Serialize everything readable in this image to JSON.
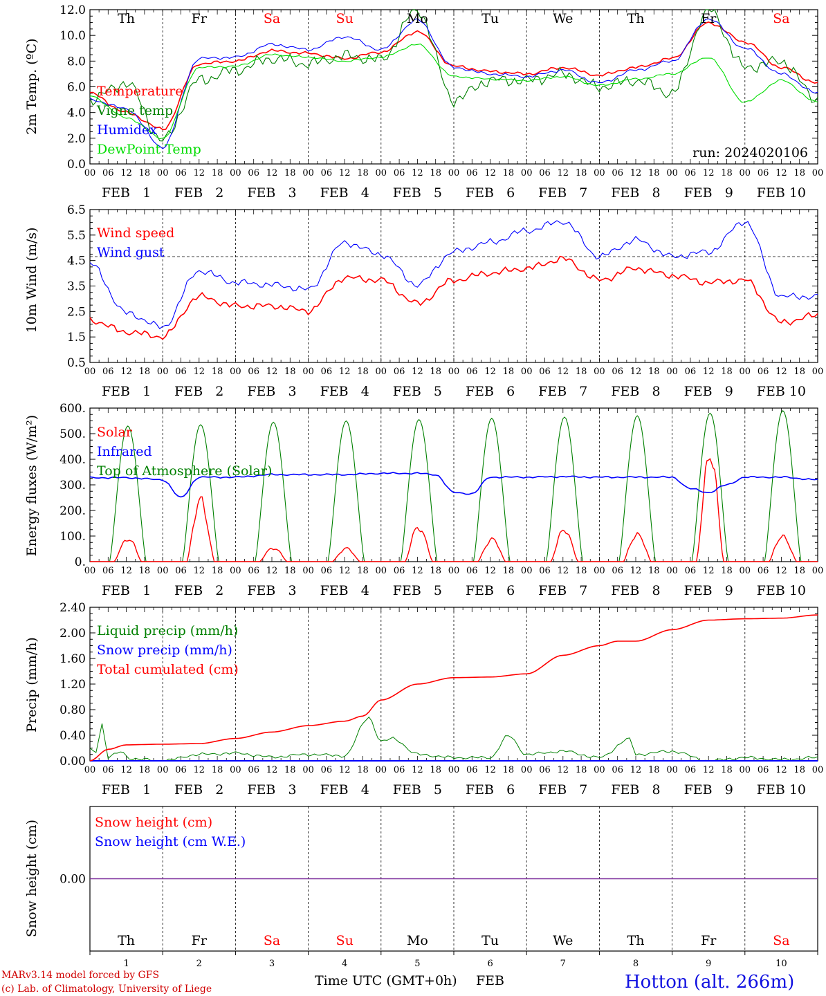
{
  "chart_data": [
    {
      "type": "line",
      "ylabel": "2m Temp. (ºC)",
      "ylim": [
        0,
        12
      ],
      "yticks": [
        "0.0",
        "2.0",
        "4.0",
        "6.0",
        "8.0",
        "10.0",
        "12.0"
      ],
      "run_label": "run: 2024020106",
      "hours": [
        0,
        12,
        24,
        36,
        48,
        60,
        72,
        84,
        96,
        108,
        120,
        132,
        144,
        156,
        168,
        180,
        192,
        204,
        216,
        228,
        240
      ],
      "series": [
        {
          "name": "Temperature",
          "color": "#ff0000",
          "values": [
            5.5,
            4.0,
            2.7,
            7.8,
            8.0,
            8.8,
            8.6,
            8.2,
            8.7,
            10.3,
            7.6,
            7.2,
            7.0,
            7.5,
            6.9,
            7.5,
            8.2,
            11.0,
            9.5,
            7.5,
            6.3
          ]
        },
        {
          "name": "Vigne temp",
          "color": "#008000",
          "values": [
            5.0,
            6.3,
            1.8,
            6.5,
            7.3,
            8.2,
            7.8,
            8.4,
            8.1,
            12.0,
            5.0,
            6.5,
            6.5,
            7.0,
            6.0,
            6.5,
            5.5,
            12.0,
            7.5,
            8.0,
            5.0
          ]
        },
        {
          "name": "Humidex",
          "color": "#0000ff",
          "values": [
            5.0,
            4.3,
            1.3,
            8.2,
            8.3,
            9.3,
            8.9,
            9.9,
            8.9,
            11.2,
            7.5,
            7.0,
            6.8,
            7.3,
            6.3,
            7.3,
            8.0,
            11.3,
            9.0,
            7.0,
            5.5
          ]
        },
        {
          "name": "DewPoint Temp",
          "color": "#00dd00",
          "values": [
            5.3,
            3.6,
            2.0,
            7.5,
            7.6,
            8.5,
            8.3,
            8.0,
            8.3,
            9.3,
            6.8,
            6.6,
            6.5,
            6.8,
            6.1,
            6.6,
            7.0,
            8.3,
            4.8,
            6.5,
            4.8
          ]
        }
      ]
    },
    {
      "type": "line",
      "ylabel": "10m Wind (m/s)",
      "ylim": [
        0.5,
        7.0
      ],
      "yticks": [
        "0.5",
        "1.5",
        "2.5",
        "3.5",
        "4.5",
        "5.5",
        "6.5"
      ],
      "reference_line": 5.0,
      "hours": [
        0,
        12,
        24,
        36,
        48,
        60,
        72,
        84,
        96,
        108,
        120,
        132,
        144,
        156,
        168,
        180,
        192,
        204,
        216,
        228,
        240
      ],
      "series": [
        {
          "name": "Wind speed",
          "color": "#ff0000",
          "values": [
            2.3,
            1.8,
            1.6,
            3.3,
            2.9,
            2.9,
            2.7,
            4.1,
            4.0,
            3.0,
            4.0,
            4.3,
            4.5,
            4.9,
            4.0,
            4.5,
            4.2,
            3.9,
            4.0,
            2.2,
            2.5
          ]
        },
        {
          "name": "Wind gust",
          "color": "#0000ff",
          "values": [
            4.7,
            2.6,
            2.0,
            4.4,
            3.9,
            3.8,
            3.6,
            5.6,
            5.1,
            3.8,
            5.2,
            5.6,
            6.1,
            6.5,
            5.0,
            5.7,
            5.0,
            5.2,
            6.5,
            3.3,
            3.3
          ]
        }
      ]
    },
    {
      "type": "line",
      "ylabel": "Energy fluxes (W/m²)",
      "ylim": [
        0,
        600
      ],
      "yticks": [
        "0.",
        "100.",
        "200.",
        "300.",
        "400.",
        "500.",
        "600."
      ],
      "series": [
        {
          "name": "Solar",
          "color": "#ff0000",
          "day_peaks": [
            90,
            230,
            55,
            50,
            135,
            88,
            120,
            110,
            400,
            100
          ]
        },
        {
          "name": "Infrared",
          "color": "#0000ff",
          "hours": [
            0,
            12,
            24,
            30,
            36,
            48,
            60,
            72,
            84,
            96,
            108,
            114,
            120,
            126,
            132,
            144,
            156,
            168,
            180,
            192,
            198,
            204,
            210,
            216,
            228,
            240
          ],
          "values": [
            328,
            328,
            320,
            250,
            330,
            330,
            340,
            340,
            340,
            345,
            345,
            340,
            270,
            265,
            330,
            330,
            332,
            330,
            330,
            330,
            285,
            270,
            300,
            330,
            330,
            320
          ]
        },
        {
          "name": "Top of Atmosphere (Solar)",
          "color": "#008000",
          "day_peaks": [
            530,
            535,
            545,
            550,
            555,
            560,
            565,
            570,
            580,
            590
          ]
        }
      ]
    },
    {
      "type": "line",
      "ylabel": "Precip (mm/h)",
      "ylim": [
        0,
        2.4
      ],
      "yticks": [
        "0.00",
        "0.40",
        "0.80",
        "1.20",
        "1.60",
        "2.00",
        "2.40"
      ],
      "series": [
        {
          "name": "Liquid precip (mm/h)",
          "color": "#008000",
          "hours": [
            0,
            2,
            4,
            6,
            10,
            14,
            18,
            24,
            36,
            48,
            60,
            72,
            84,
            92,
            96,
            100,
            108,
            120,
            132,
            138,
            144,
            156,
            168,
            178,
            180,
            192,
            204,
            216,
            228,
            240
          ],
          "values": [
            0.18,
            0.15,
            0.58,
            0.05,
            0.14,
            0.03,
            0.02,
            0.0,
            0.1,
            0.12,
            0.06,
            0.1,
            0.08,
            0.68,
            0.3,
            0.35,
            0.1,
            0.05,
            0.05,
            0.39,
            0.1,
            0.15,
            0.05,
            0.34,
            0.1,
            0.15,
            0.0,
            0.05,
            0.02,
            0.05
          ]
        },
        {
          "name": "Snow precip (mm/h)",
          "color": "#0000ff",
          "hours": [
            0,
            240
          ],
          "values": [
            0,
            0
          ]
        },
        {
          "name": "Total cumulated (cm)",
          "color": "#ff0000",
          "hours": [
            0,
            6,
            12,
            24,
            36,
            48,
            60,
            72,
            84,
            90,
            96,
            108,
            120,
            132,
            144,
            156,
            168,
            174,
            180,
            192,
            204,
            216,
            228,
            240
          ],
          "values": [
            0.0,
            0.18,
            0.25,
            0.26,
            0.27,
            0.35,
            0.45,
            0.55,
            0.62,
            0.7,
            0.95,
            1.2,
            1.3,
            1.31,
            1.36,
            1.65,
            1.8,
            1.87,
            1.87,
            2.05,
            2.2,
            2.22,
            2.23,
            2.28
          ]
        }
      ]
    },
    {
      "type": "line",
      "ylabel": "Snow height (cm)",
      "yticks": [
        "0.00"
      ],
      "series": [
        {
          "name": "Snow height (cm)",
          "color": "#ff0000",
          "values": [
            0,
            0
          ]
        },
        {
          "name": "Snow height (cm W.E.)",
          "color": "#0000ff",
          "values": [
            0,
            0
          ]
        }
      ]
    }
  ],
  "x_axis": {
    "hour_labels": [
      "00",
      "06",
      "12",
      "18"
    ],
    "final_label": "00",
    "date_labels": [
      "FEB   1",
      "FEB   2",
      "FEB   3",
      "FEB   4",
      "FEB   5",
      "FEB   6",
      "FEB   7",
      "FEB   8",
      "FEB   9",
      "FEB 10"
    ],
    "days": [
      {
        "name": "Th",
        "color": "#000000",
        "num": "1"
      },
      {
        "name": "Fr",
        "color": "#000000",
        "num": "2"
      },
      {
        "name": "Sa",
        "color": "#ff0000",
        "num": "3"
      },
      {
        "name": "Su",
        "color": "#ff0000",
        "num": "4"
      },
      {
        "name": "Mo",
        "color": "#000000",
        "num": "5"
      },
      {
        "name": "Tu",
        "color": "#000000",
        "num": "6"
      },
      {
        "name": "We",
        "color": "#000000",
        "num": "7"
      },
      {
        "name": "Th",
        "color": "#000000",
        "num": "8"
      },
      {
        "name": "Fr",
        "color": "#000000",
        "num": "9"
      },
      {
        "name": "Sa",
        "color": "#ff0000",
        "num": "10"
      }
    ],
    "title": "Time UTC (GMT+0h)",
    "month": "FEB"
  },
  "footer": {
    "line1": "MARv3.14 model forced by GFS",
    "line2": "(c) Lab. of Climatology, University of Liege",
    "station": "Hotton (alt. 266m)"
  }
}
